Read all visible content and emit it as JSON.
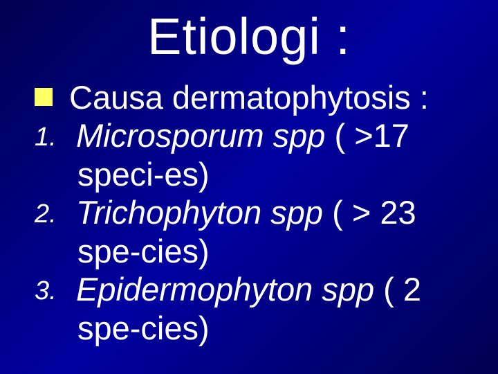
{
  "slide": {
    "title": "Etiologi :",
    "background_gradient": [
      "#000050",
      "#0000a0",
      "#000050"
    ],
    "text_color": "#ffffff",
    "bullet_color": "#ffff66",
    "title_fontsize": 74,
    "body_fontsize": 47,
    "num_fontsize": 38,
    "bullet": {
      "text": "Causa dermatophytosis :"
    },
    "items": [
      {
        "num": "1.",
        "italic_part": "Microsporum spp ",
        "rest": "( >17",
        "cont": "speci-es)"
      },
      {
        "num": "2.",
        "italic_part": "Trichophyton spp ",
        "rest": "( > 23",
        "cont": "spe-cies)"
      },
      {
        "num": "3.",
        "italic_part": "Epidermophyton spp ",
        "rest": "( 2",
        "cont": "spe-cies)"
      }
    ]
  }
}
